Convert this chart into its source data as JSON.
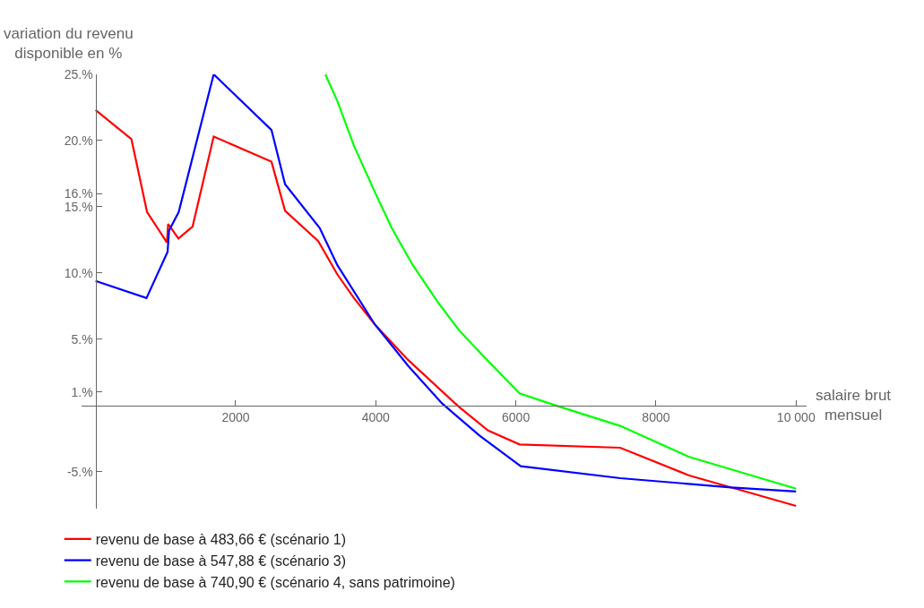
{
  "chart_data": {
    "type": "line",
    "xlabel": "salaire brut\nmensuel",
    "ylabel": "variation du revenu\ndisponible en %",
    "xlim": [
      -200,
      10150
    ],
    "ylim": [
      -7.8,
      25
    ],
    "xticks": [
      2000,
      4000,
      6000,
      8000,
      {
        "value": 10000,
        "label": "10 000"
      }
    ],
    "yticks": [
      {
        "value": -5,
        "label": "-5.%"
      },
      {
        "value": 1,
        "label": "1.%"
      },
      {
        "value": 5,
        "label": "5.%"
      },
      {
        "value": 10,
        "label": "10.%"
      },
      {
        "value": 15,
        "label": "15.%"
      },
      {
        "value": 16,
        "label": "16.%"
      },
      {
        "value": 20,
        "label": "20.%"
      },
      {
        "value": 25,
        "label": "25.%"
      }
    ],
    "legend": "bottom",
    "marker": "none",
    "line_style": "solid",
    "series": [
      {
        "name": "revenu de base à 483,66 € (scénario 1)",
        "color": "#ff0000",
        "x": [
          0,
          512,
          735,
          1019,
          1036,
          1183,
          1385,
          1686,
          2511,
          2705,
          3178,
          3450,
          3689,
          3988,
          4467,
          5184,
          5603,
          6052,
          7488,
          8474,
          10000
        ],
        "values": [
          22.3,
          20.1,
          14.6,
          12.3,
          13.7,
          12.6,
          13.5,
          20.3,
          18.4,
          14.7,
          12.4,
          9.9,
          8.1,
          6.1,
          3.4,
          -0.1,
          -1.9,
          -2.95,
          -3.2,
          -5.3,
          -7.6
        ]
      },
      {
        "name": "revenu de base à 547,88 € (scénario 3)",
        "color": "#0000ff",
        "x": [
          0,
          727,
          1028,
          1049,
          1187,
          1686,
          2511,
          2705,
          3199,
          3450,
          3988,
          4467,
          4945,
          5484,
          6070,
          7488,
          9073,
          10000
        ],
        "values": [
          9.4,
          8.1,
          11.6,
          13.2,
          14.6,
          25.0,
          20.8,
          16.7,
          13.4,
          10.6,
          6.1,
          2.95,
          0.15,
          -2.3,
          -4.6,
          -5.5,
          -6.2,
          -6.5
        ]
      },
      {
        "name": "revenu de base à 740,90 € (scénario 4, sans patrimoine)",
        "color": "#00ff00",
        "x": [
          3280,
          3450,
          3689,
          3988,
          4227,
          4527,
          4885,
          5185,
          5484,
          6052,
          6560,
          7488,
          8474,
          10000
        ],
        "values": [
          25.0,
          23.0,
          19.6,
          16.1,
          13.4,
          10.6,
          7.8,
          5.7,
          4.0,
          0.9,
          0.0,
          -1.55,
          -3.9,
          -6.3
        ]
      }
    ]
  }
}
